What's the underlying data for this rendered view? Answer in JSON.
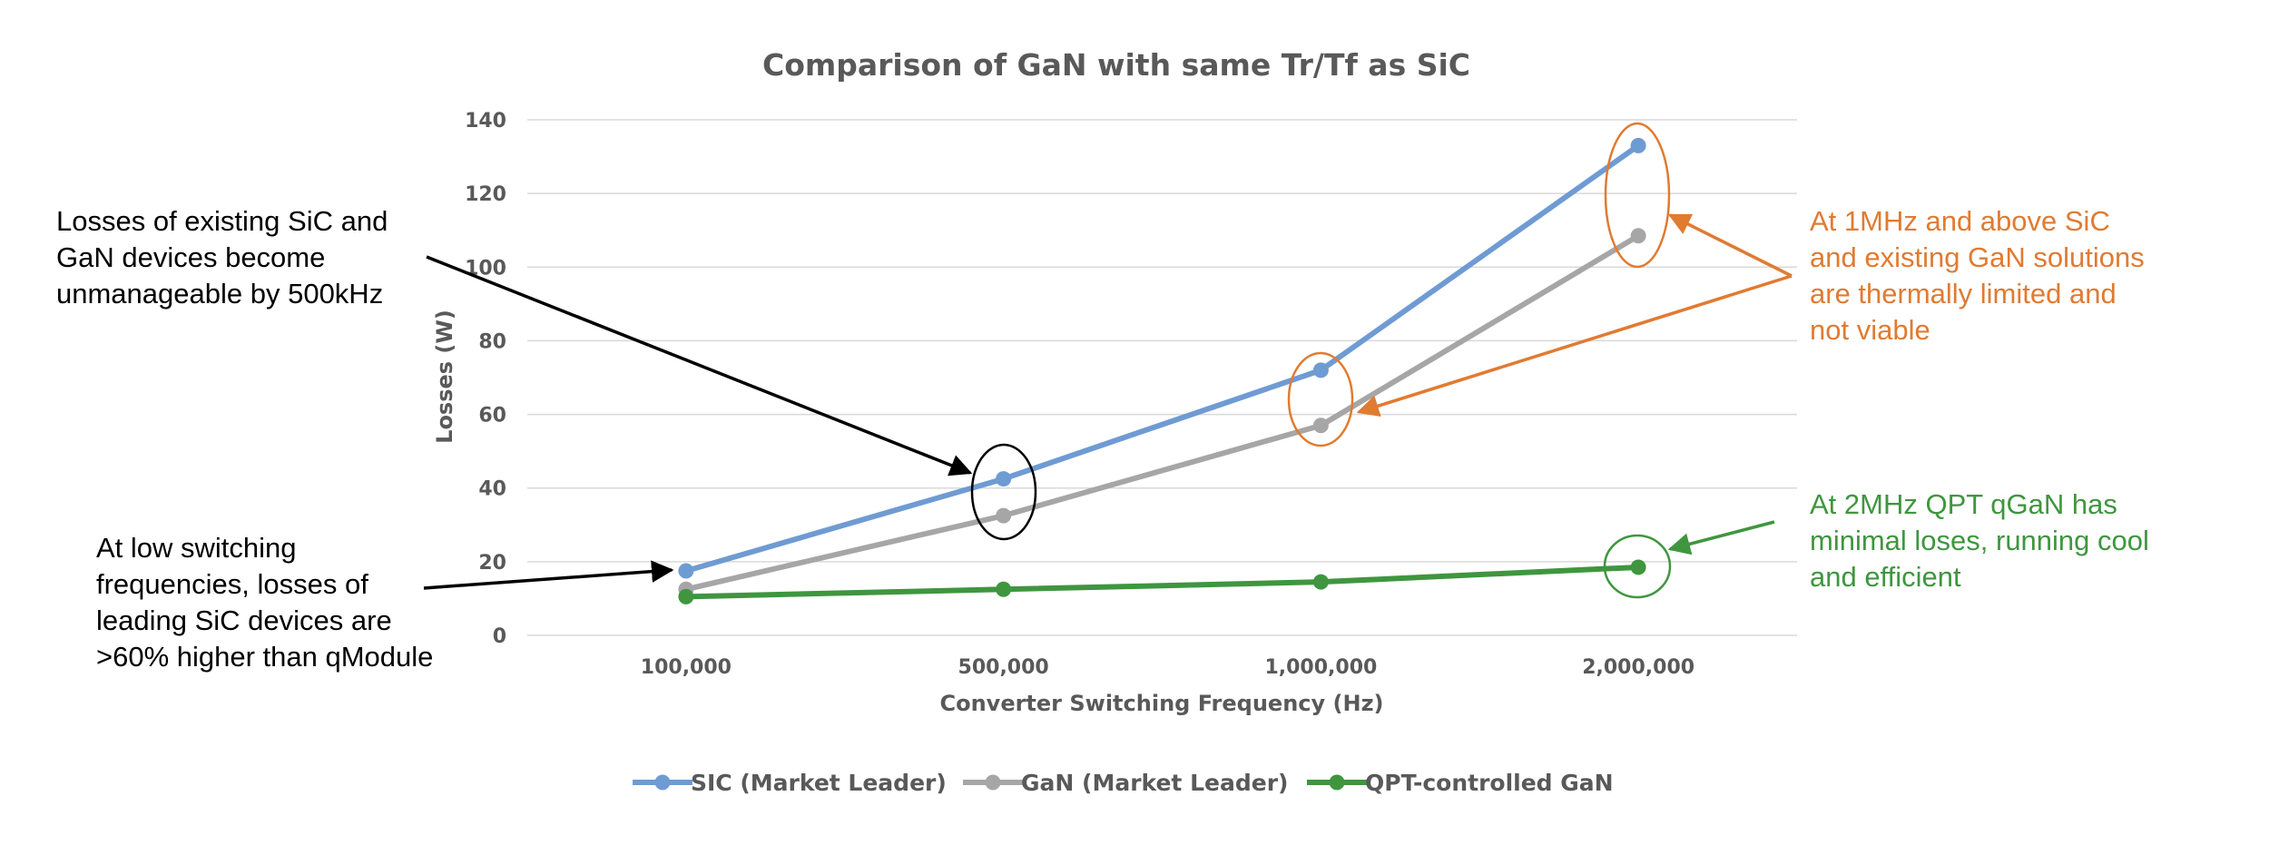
{
  "chart_data": {
    "type": "line",
    "title": "Comparison of GaN with same Tr/Tf as SiC",
    "xlabel": "Converter Switching Frequency (Hz)",
    "ylabel": "Losses (W)",
    "categories": [
      "100,000",
      "500,000",
      "1,000,000",
      "2,000,000"
    ],
    "ylim": [
      0,
      140
    ],
    "yticks": [
      "0",
      "20",
      "40",
      "60",
      "80",
      "100",
      "120",
      "140"
    ],
    "grid": true,
    "legend_position": "bottom",
    "series": [
      {
        "name": "SIC (Market Leader)",
        "color": "#6f9bd3",
        "values": [
          17.5,
          42.5,
          72,
          133
        ]
      },
      {
        "name": "GaN (Market Leader)",
        "color": "#a6a6a6",
        "values": [
          12.5,
          32.5,
          57,
          108.5
        ]
      },
      {
        "name": "QPT-controlled GaN",
        "color": "#3f963f",
        "values": [
          10.5,
          12.5,
          14.5,
          18.5
        ]
      }
    ],
    "annotations": [
      {
        "lines": [
          "Losses of existing SiC and",
          "GaN devices become",
          "unmanageable by 500kHz"
        ],
        "color": "#000000"
      },
      {
        "lines": [
          "At low switching",
          "frequencies, losses of",
          "leading SiC devices are",
          ">60% higher than qModule"
        ],
        "color": "#000000"
      },
      {
        "lines": [
          "At 1MHz and above SiC",
          "and existing GaN solutions",
          "are thermally limited and",
          "not viable"
        ],
        "color": "#e07b32"
      },
      {
        "lines": [
          "At 2MHz QPT qGaN has",
          "minimal loses, running cool",
          "and efficient"
        ],
        "color": "#3f963f"
      }
    ]
  }
}
